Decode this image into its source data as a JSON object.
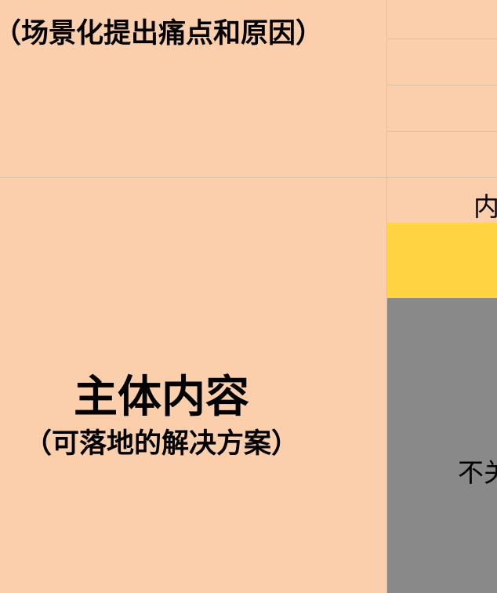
{
  "left": {
    "top_heading": "（场景化提出痛点和原因）",
    "main_title": "主体内容",
    "main_subtitle": "（可落地的解决方案）"
  },
  "right": {
    "label_cell": "内",
    "gray_cell": "不关"
  },
  "colors": {
    "peach": "#fccfac",
    "yellow": "#ffd342",
    "gray": "#898989"
  }
}
